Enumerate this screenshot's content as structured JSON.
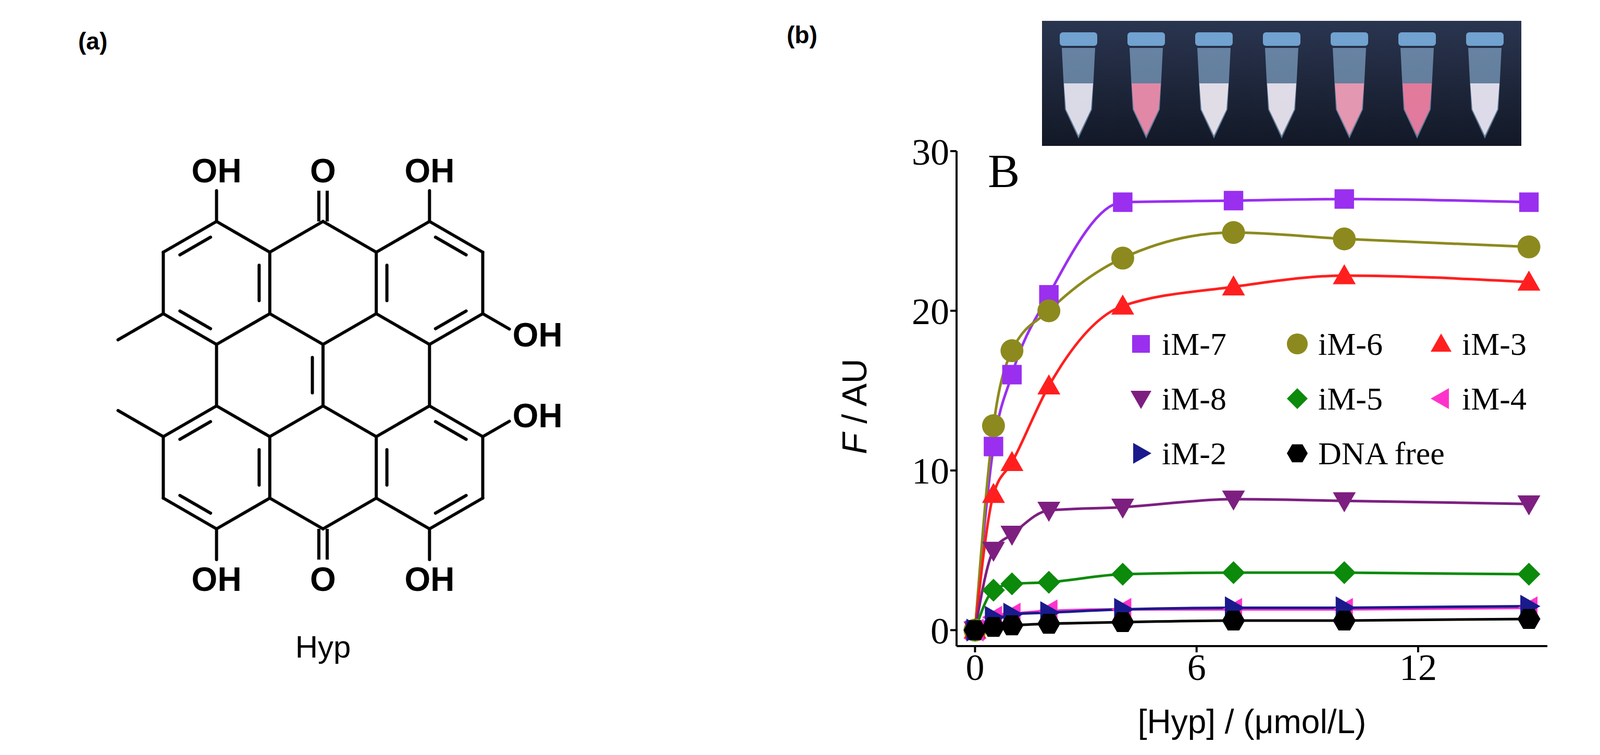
{
  "panel_a": {
    "label": "(a)",
    "name": "Hyp",
    "substituent_labels": [
      "OH",
      "O",
      "OH",
      "OH",
      "OH",
      "OH",
      "O",
      "OH"
    ]
  },
  "chart_data": {
    "type": "line",
    "title": "(b)",
    "annotations": [
      "B"
    ],
    "x_label": "[Hyp] / (μmol/L)",
    "y_label": "F / AU",
    "x": [
      0,
      0.5,
      1,
      2,
      4,
      7,
      10,
      15
    ],
    "xlim": [
      -0.5,
      15.5
    ],
    "xticks": [
      0,
      6,
      12
    ],
    "ylim": [
      -1,
      30
    ],
    "yticks": [
      0,
      10,
      20,
      30
    ],
    "series": [
      {
        "name": "iM-7",
        "color": "#9a2ff0",
        "marker": "square",
        "values": [
          0,
          11.5,
          16,
          21,
          26.8,
          26.9,
          27,
          26.8
        ]
      },
      {
        "name": "iM-6",
        "color": "#8c8a1e",
        "marker": "circle",
        "values": [
          0,
          12.8,
          17.5,
          20,
          23.3,
          24.9,
          24.5,
          24
        ]
      },
      {
        "name": "iM-3",
        "color": "#ff1f1f",
        "marker": "triangle-up",
        "values": [
          0,
          8.5,
          10.5,
          15.3,
          20.3,
          21.5,
          22.2,
          21.8
        ]
      },
      {
        "name": "iM-8",
        "color": "#7d1f80",
        "marker": "triangle-down",
        "values": [
          0,
          5,
          6,
          7.5,
          7.7,
          8.2,
          8.1,
          7.9
        ]
      },
      {
        "name": "iM-5",
        "color": "#0b8a0b",
        "marker": "diamond",
        "values": [
          0,
          2.5,
          2.9,
          3,
          3.5,
          3.6,
          3.6,
          3.5
        ]
      },
      {
        "name": "iM-4",
        "color": "#ff33cc",
        "marker": "triangle-left",
        "values": [
          0,
          0.8,
          1,
          1.2,
          1.3,
          1.3,
          1.3,
          1.4
        ]
      },
      {
        "name": "iM-2",
        "color": "#1a1a8c",
        "marker": "triangle-right",
        "values": [
          0,
          0.8,
          1,
          1.1,
          1.3,
          1.4,
          1.4,
          1.5
        ]
      },
      {
        "name": "DNA free",
        "color": "#000000",
        "marker": "hexagon",
        "values": [
          0,
          0.2,
          0.3,
          0.4,
          0.5,
          0.6,
          0.6,
          0.7
        ]
      }
    ]
  }
}
